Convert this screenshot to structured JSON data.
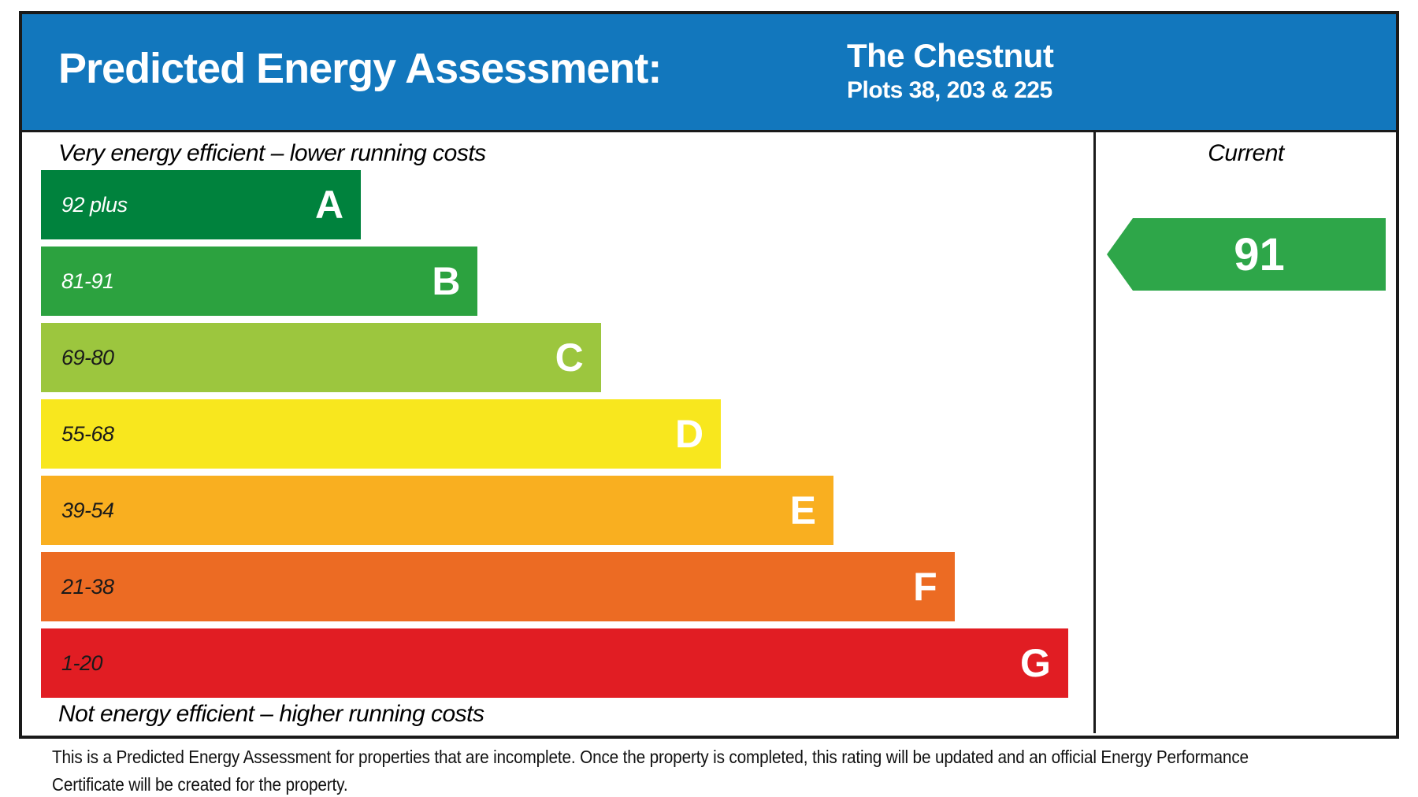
{
  "header": {
    "title": "Predicted Energy Assessment:",
    "property_name": "The Chestnut",
    "property_plots": "Plots 38, 203 & 225",
    "background_color": "#1277BD"
  },
  "chart_data": {
    "type": "bar",
    "title": "Predicted Energy Assessment",
    "top_axis_label": "Very energy efficient – lower running costs",
    "bottom_axis_label": "Not energy efficient – higher running costs",
    "column_header": "Current",
    "bands": [
      {
        "letter": "A",
        "range": "92 plus",
        "color": "#00823D",
        "range_text_color": "#FFFFFF",
        "width_pct": 30.4
      },
      {
        "letter": "B",
        "range": "81-91",
        "color": "#2CA23F",
        "range_text_color": "#FFFFFF",
        "width_pct": 41.5
      },
      {
        "letter": "C",
        "range": "69-80",
        "color": "#9CC63E",
        "range_text_color": "#1A1A1A",
        "width_pct": 53.2
      },
      {
        "letter": "D",
        "range": "55-68",
        "color": "#F8E71E",
        "range_text_color": "#1A1A1A",
        "width_pct": 64.6
      },
      {
        "letter": "E",
        "range": "39-54",
        "color": "#F9AF20",
        "range_text_color": "#1A1A1A",
        "width_pct": 75.3
      },
      {
        "letter": "F",
        "range": "21-38",
        "color": "#EC6B23",
        "range_text_color": "#1A1A1A",
        "width_pct": 86.8
      },
      {
        "letter": "G",
        "range": "1-20",
        "color": "#E11D23",
        "range_text_color": "#1A1A1A",
        "width_pct": 97.6
      }
    ],
    "current_rating": {
      "value": "91",
      "band": "B",
      "arrow_color": "#2EA649"
    }
  },
  "footer": {
    "lines": [
      "This is a Predicted Energy Assessment for properties that are incomplete. Once the property is completed, this rating will be updated and an official Energy Performance",
      "Certificate will be created for the property."
    ]
  }
}
